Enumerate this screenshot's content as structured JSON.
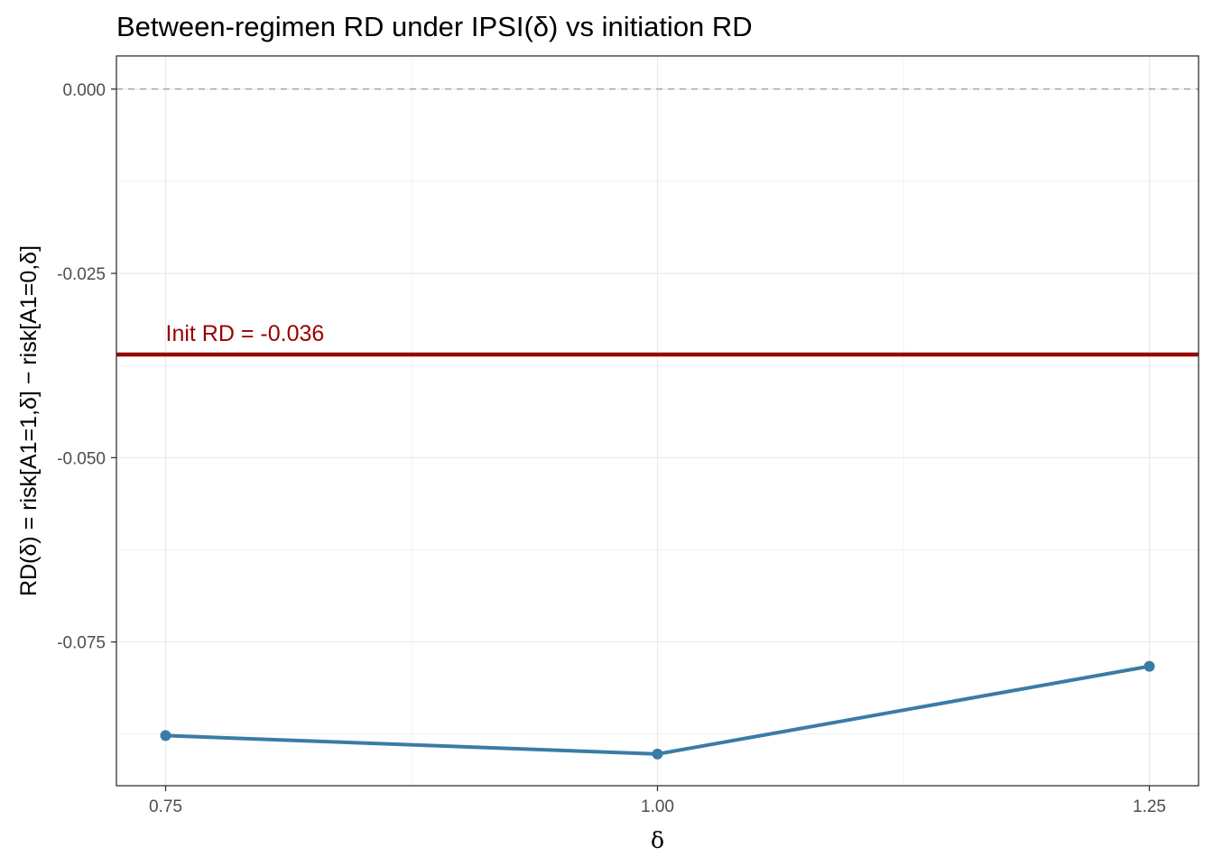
{
  "chart_data": {
    "type": "line",
    "title": "Between-regimen RD under IPSI(δ) vs initiation RD",
    "xlabel": "δ",
    "ylabel": "RD(δ) = risk[A1=1,δ] − risk[A1=0,δ]",
    "x": [
      0.75,
      1.0,
      1.25
    ],
    "x_tick_labels": [
      "0.75",
      "1.00",
      "1.25"
    ],
    "y_ticks": [
      0.0,
      -0.025,
      -0.05,
      -0.075
    ],
    "y_tick_labels": [
      "0.000",
      "-0.025",
      "-0.050",
      "-0.075"
    ],
    "series": [
      {
        "values": [
          -0.0877,
          -0.0902,
          -0.0783
        ],
        "color": "#3A7CA5"
      }
    ],
    "reference_lines": [
      {
        "y": 0.0,
        "style": "dashed",
        "color": "#999999"
      },
      {
        "y": -0.036,
        "style": "solid",
        "color": "#990000",
        "label": "Init RD = -0.036"
      }
    ],
    "xlim": [
      0.725,
      1.275
    ],
    "ylim": [
      -0.0945,
      0.0045
    ],
    "grid": true
  }
}
